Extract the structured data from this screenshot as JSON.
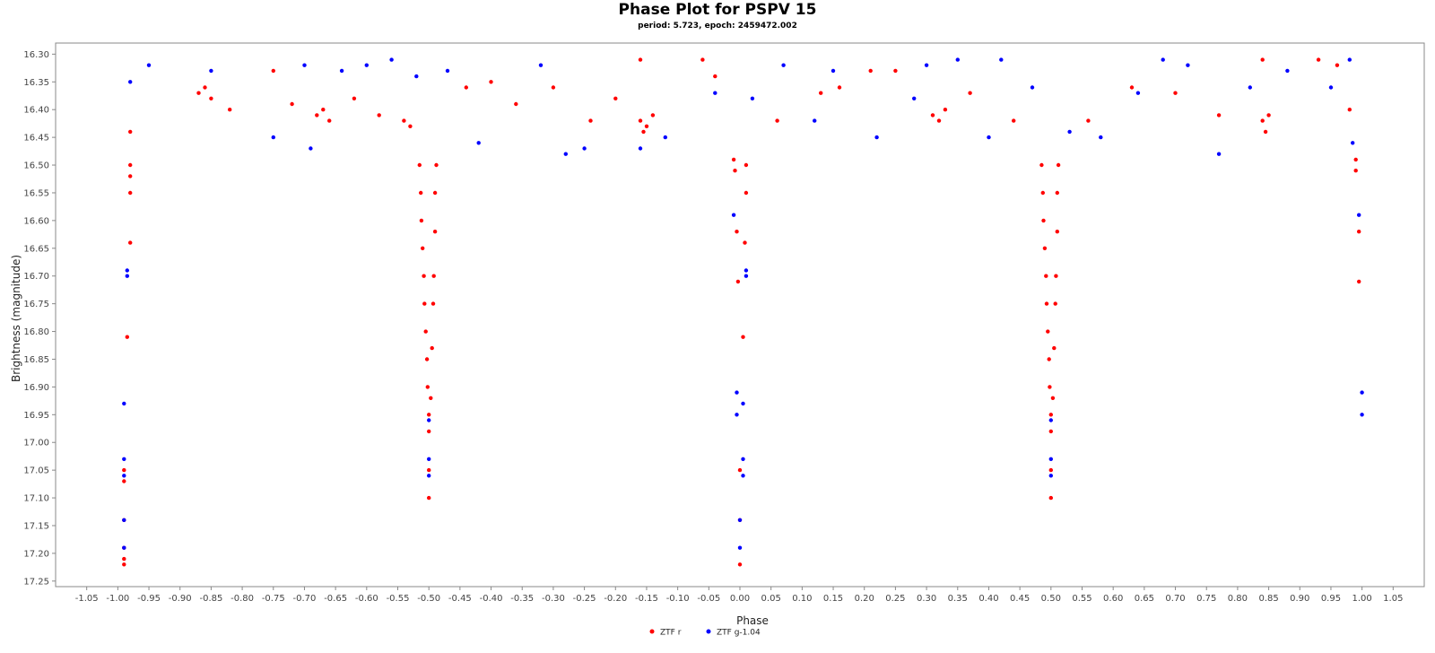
{
  "chart_data": {
    "type": "scatter",
    "title": "Phase Plot for PSPV 15",
    "subtitle": "period: 5.723, epoch: 2459472.002",
    "xlabel": "Phase",
    "ylabel": "Brightness (magnitude)",
    "xlim": [
      -1.1,
      1.1
    ],
    "ylim": [
      17.26,
      16.28
    ],
    "y_inverted": true,
    "x_ticks": [
      "-1.05",
      "-1.00",
      "-0.95",
      "-0.90",
      "-0.85",
      "-0.80",
      "-0.75",
      "-0.70",
      "-0.65",
      "-0.60",
      "-0.55",
      "-0.50",
      "-0.45",
      "-0.40",
      "-0.35",
      "-0.30",
      "-0.25",
      "-0.20",
      "-0.15",
      "-0.10",
      "-0.05",
      "0.00",
      "0.05",
      "0.10",
      "0.15",
      "0.20",
      "0.25",
      "0.30",
      "0.35",
      "0.40",
      "0.45",
      "0.50",
      "0.55",
      "0.60",
      "0.65",
      "0.70",
      "0.75",
      "0.80",
      "0.85",
      "0.90",
      "0.95",
      "1.00",
      "1.05"
    ],
    "y_ticks": [
      "16.30",
      "16.35",
      "16.40",
      "16.45",
      "16.50",
      "16.55",
      "16.60",
      "16.65",
      "16.70",
      "16.75",
      "16.80",
      "16.85",
      "16.90",
      "16.95",
      "17.00",
      "17.05",
      "17.10",
      "17.15",
      "17.20",
      "17.25"
    ],
    "grid": false,
    "legend_position": "bottom-center",
    "series": [
      {
        "name": "ZTF r",
        "color": "#ff0000",
        "points": [
          [
            -0.99,
            17.22
          ],
          [
            -0.99,
            17.21
          ],
          [
            -0.99,
            17.19
          ],
          [
            -0.99,
            17.14
          ],
          [
            -0.99,
            17.07
          ],
          [
            -0.99,
            17.05
          ],
          [
            -0.985,
            16.81
          ],
          [
            -0.98,
            16.64
          ],
          [
            -0.98,
            16.55
          ],
          [
            -0.98,
            16.52
          ],
          [
            -0.98,
            16.5
          ],
          [
            -0.98,
            16.44
          ],
          [
            -0.515,
            16.5
          ],
          [
            -0.513,
            16.55
          ],
          [
            -0.512,
            16.6
          ],
          [
            -0.51,
            16.65
          ],
          [
            -0.508,
            16.7
          ],
          [
            -0.507,
            16.75
          ],
          [
            -0.505,
            16.8
          ],
          [
            -0.503,
            16.85
          ],
          [
            -0.502,
            16.9
          ],
          [
            -0.5,
            16.95
          ],
          [
            -0.5,
            16.98
          ],
          [
            -0.5,
            17.05
          ],
          [
            -0.5,
            17.1
          ],
          [
            -0.497,
            16.92
          ],
          [
            -0.495,
            16.83
          ],
          [
            -0.493,
            16.75
          ],
          [
            -0.492,
            16.7
          ],
          [
            -0.49,
            16.62
          ],
          [
            -0.49,
            16.55
          ],
          [
            -0.488,
            16.5
          ],
          [
            -0.01,
            16.49
          ],
          [
            -0.008,
            16.51
          ],
          [
            -0.005,
            16.62
          ],
          [
            -0.003,
            16.71
          ],
          [
            0.0,
            17.05
          ],
          [
            0.0,
            17.14
          ],
          [
            0.0,
            17.22
          ],
          [
            0.005,
            16.81
          ],
          [
            0.008,
            16.64
          ],
          [
            0.01,
            16.55
          ],
          [
            0.01,
            16.5
          ],
          [
            0.485,
            16.5
          ],
          [
            0.487,
            16.55
          ],
          [
            0.488,
            16.6
          ],
          [
            0.49,
            16.65
          ],
          [
            0.492,
            16.7
          ],
          [
            0.493,
            16.75
          ],
          [
            0.495,
            16.8
          ],
          [
            0.497,
            16.85
          ],
          [
            0.498,
            16.9
          ],
          [
            0.5,
            16.95
          ],
          [
            0.5,
            16.98
          ],
          [
            0.5,
            17.05
          ],
          [
            0.5,
            17.1
          ],
          [
            0.503,
            16.92
          ],
          [
            0.505,
            16.83
          ],
          [
            0.507,
            16.75
          ],
          [
            0.508,
            16.7
          ],
          [
            0.51,
            16.62
          ],
          [
            0.51,
            16.55
          ],
          [
            0.512,
            16.5
          ],
          [
            0.99,
            16.49
          ],
          [
            0.99,
            16.51
          ],
          [
            0.995,
            16.62
          ],
          [
            0.995,
            16.71
          ],
          [
            -0.87,
            16.37
          ],
          [
            -0.86,
            16.36
          ],
          [
            -0.85,
            16.38
          ],
          [
            -0.82,
            16.4
          ],
          [
            -0.75,
            16.33
          ],
          [
            -0.72,
            16.39
          ],
          [
            -0.68,
            16.41
          ],
          [
            -0.67,
            16.4
          ],
          [
            -0.66,
            16.42
          ],
          [
            -0.62,
            16.38
          ],
          [
            -0.58,
            16.41
          ],
          [
            -0.54,
            16.42
          ],
          [
            -0.53,
            16.43
          ],
          [
            -0.44,
            16.36
          ],
          [
            -0.4,
            16.35
          ],
          [
            -0.36,
            16.39
          ],
          [
            -0.3,
            16.36
          ],
          [
            -0.24,
            16.42
          ],
          [
            -0.2,
            16.38
          ],
          [
            -0.16,
            16.31
          ],
          [
            -0.16,
            16.42
          ],
          [
            -0.155,
            16.44
          ],
          [
            -0.15,
            16.43
          ],
          [
            -0.14,
            16.41
          ],
          [
            -0.06,
            16.31
          ],
          [
            -0.04,
            16.34
          ],
          [
            0.06,
            16.42
          ],
          [
            0.13,
            16.37
          ],
          [
            0.16,
            16.36
          ],
          [
            0.21,
            16.33
          ],
          [
            0.25,
            16.33
          ],
          [
            0.31,
            16.41
          ],
          [
            0.32,
            16.42
          ],
          [
            0.33,
            16.4
          ],
          [
            0.37,
            16.37
          ],
          [
            0.44,
            16.42
          ],
          [
            0.56,
            16.42
          ],
          [
            0.63,
            16.36
          ],
          [
            0.7,
            16.37
          ],
          [
            0.77,
            16.41
          ],
          [
            0.84,
            16.31
          ],
          [
            0.84,
            16.42
          ],
          [
            0.845,
            16.44
          ],
          [
            0.85,
            16.41
          ],
          [
            0.93,
            16.31
          ],
          [
            0.96,
            16.32
          ],
          [
            0.98,
            16.4
          ]
        ]
      },
      {
        "name": "ZTF g-1.04",
        "color": "#0000ff",
        "points": [
          [
            -0.99,
            17.19
          ],
          [
            -0.99,
            17.14
          ],
          [
            -0.99,
            17.06
          ],
          [
            -0.99,
            17.03
          ],
          [
            -0.99,
            16.93
          ],
          [
            -0.985,
            16.7
          ],
          [
            -0.985,
            16.69
          ],
          [
            -0.98,
            16.35
          ],
          [
            -0.5,
            17.06
          ],
          [
            -0.5,
            17.03
          ],
          [
            -0.5,
            16.96
          ],
          [
            -0.01,
            16.59
          ],
          [
            -0.005,
            16.91
          ],
          [
            -0.005,
            16.95
          ],
          [
            0.0,
            17.19
          ],
          [
            0.0,
            17.14
          ],
          [
            0.005,
            17.06
          ],
          [
            0.005,
            17.03
          ],
          [
            0.005,
            16.93
          ],
          [
            0.01,
            16.7
          ],
          [
            0.01,
            16.69
          ],
          [
            0.5,
            17.06
          ],
          [
            0.5,
            17.03
          ],
          [
            0.5,
            16.96
          ],
          [
            0.995,
            16.59
          ],
          [
            1.0,
            16.91
          ],
          [
            1.0,
            16.95
          ],
          [
            -0.95,
            16.32
          ],
          [
            -0.85,
            16.33
          ],
          [
            -0.75,
            16.45
          ],
          [
            -0.7,
            16.32
          ],
          [
            -0.69,
            16.47
          ],
          [
            -0.64,
            16.33
          ],
          [
            -0.6,
            16.32
          ],
          [
            -0.56,
            16.31
          ],
          [
            -0.52,
            16.34
          ],
          [
            -0.47,
            16.33
          ],
          [
            -0.42,
            16.46
          ],
          [
            -0.32,
            16.32
          ],
          [
            -0.28,
            16.48
          ],
          [
            -0.25,
            16.47
          ],
          [
            -0.16,
            16.47
          ],
          [
            -0.12,
            16.45
          ],
          [
            -0.04,
            16.37
          ],
          [
            0.02,
            16.38
          ],
          [
            0.07,
            16.32
          ],
          [
            0.12,
            16.42
          ],
          [
            0.15,
            16.33
          ],
          [
            0.22,
            16.45
          ],
          [
            0.28,
            16.38
          ],
          [
            0.3,
            16.32
          ],
          [
            0.35,
            16.31
          ],
          [
            0.4,
            16.45
          ],
          [
            0.42,
            16.31
          ],
          [
            0.47,
            16.36
          ],
          [
            0.53,
            16.44
          ],
          [
            0.58,
            16.45
          ],
          [
            0.64,
            16.37
          ],
          [
            0.68,
            16.31
          ],
          [
            0.72,
            16.32
          ],
          [
            0.77,
            16.48
          ],
          [
            0.82,
            16.36
          ],
          [
            0.88,
            16.33
          ],
          [
            0.95,
            16.36
          ],
          [
            0.98,
            16.31
          ],
          [
            0.985,
            16.46
          ]
        ]
      }
    ]
  }
}
